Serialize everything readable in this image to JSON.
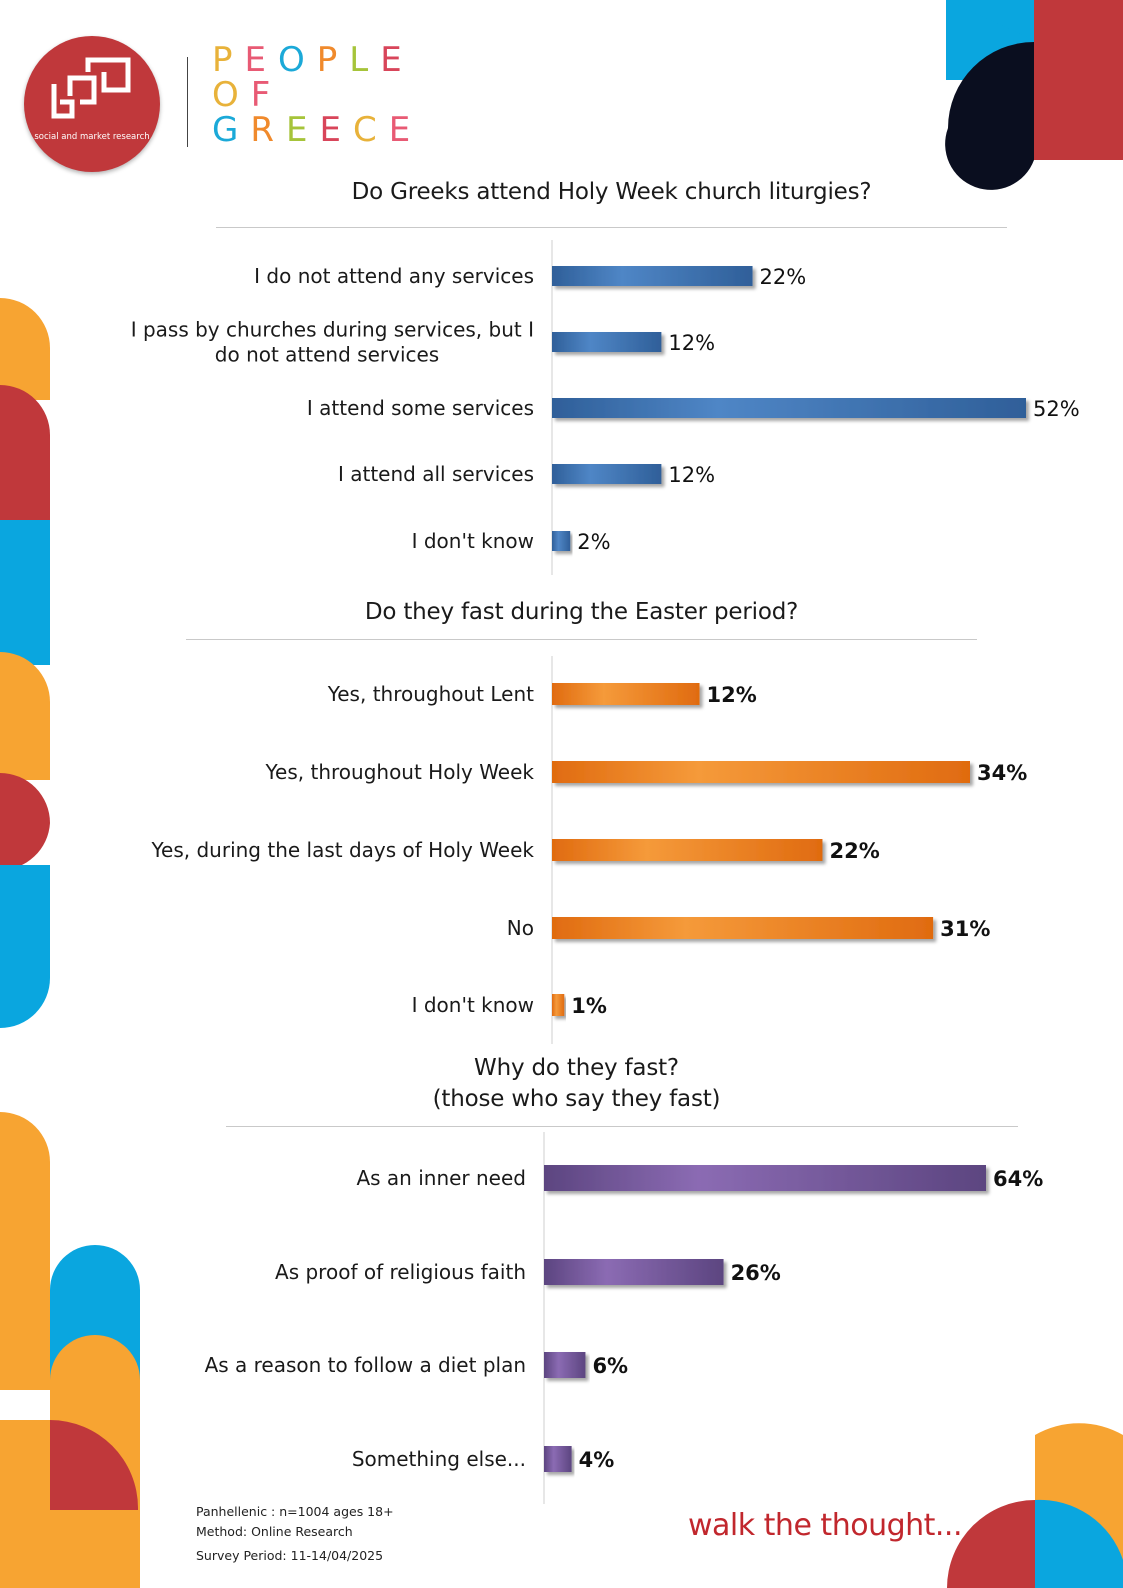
{
  "brand": {
    "logo_caption": "social and market research",
    "lines": [
      "PEOPLE",
      "OF",
      "GREECE"
    ],
    "letter_colors": [
      "#e8b23a",
      "#e85a74",
      "#1ba9d8",
      "#f08a2c",
      "#a6c43a",
      "#d8455a"
    ]
  },
  "colors": {
    "red": "#c0383b",
    "blue": "#0aa6df",
    "orange": "#f7a432",
    "navy": "#0a0e1f"
  },
  "chart_data": [
    {
      "type": "bar",
      "orientation": "horizontal",
      "title": "Do Greeks attend Holy Week church liturgies?",
      "categories": [
        "I do not attend any services",
        "I pass by churches during services, but I do not attend services",
        "I attend some services",
        "I attend all services",
        "I don't know"
      ],
      "category_lines": [
        [
          "I do not attend any services"
        ],
        [
          "I pass by churches during services, but I",
          "do not attend services"
        ],
        [
          "I attend some services"
        ],
        [
          "I attend all services"
        ],
        [
          "I don't know"
        ]
      ],
      "values": [
        22,
        12,
        52,
        12,
        2
      ],
      "value_labels": [
        "22%",
        "12%",
        "52%",
        "12%",
        "2%"
      ],
      "unit": "%",
      "color": "#2f5f99",
      "color_light": "#4f86c6",
      "label_bold": false
    },
    {
      "type": "bar",
      "orientation": "horizontal",
      "title": "Do they fast during the Easter period?",
      "categories": [
        "Yes, throughout Lent",
        "Yes, throughout Holy Week",
        "Yes, during the last days of Holy Week",
        "No",
        "I don't know"
      ],
      "category_lines": [
        [
          "Yes, throughout Lent"
        ],
        [
          "Yes, throughout Holy Week"
        ],
        [
          "Yes, during the last days of Holy Week"
        ],
        [
          "No"
        ],
        [
          "I don't know"
        ]
      ],
      "values": [
        12,
        34,
        22,
        31,
        1
      ],
      "value_labels": [
        "12%",
        "34%",
        "22%",
        "31%",
        "1%"
      ],
      "unit": "%",
      "color": "#e06b10",
      "color_light": "#f59a3a",
      "label_bold": true
    },
    {
      "type": "bar",
      "orientation": "horizontal",
      "title": "Why do they fast?",
      "subtitle": "(those who say they fast)",
      "categories": [
        "As an inner need",
        "As proof of religious faith",
        "As a reason to follow a diet plan",
        "Something else..."
      ],
      "category_lines": [
        [
          "As an inner need"
        ],
        [
          "As proof of religious faith"
        ],
        [
          "As a reason to follow a diet plan"
        ],
        [
          "Something else..."
        ]
      ],
      "values": [
        64,
        26,
        6,
        4
      ],
      "value_labels": [
        "64%",
        "26%",
        "6%",
        "4%"
      ],
      "unit": "%",
      "color": "#5c4580",
      "color_light": "#8b6bb3",
      "label_bold": true
    }
  ],
  "footer": {
    "sample": "Panhellenic : n=1004 ages 18+",
    "method": "Method: Online Research",
    "period": "Survey Period: 11-14/04/2025",
    "tagline": "walk the thought..."
  }
}
